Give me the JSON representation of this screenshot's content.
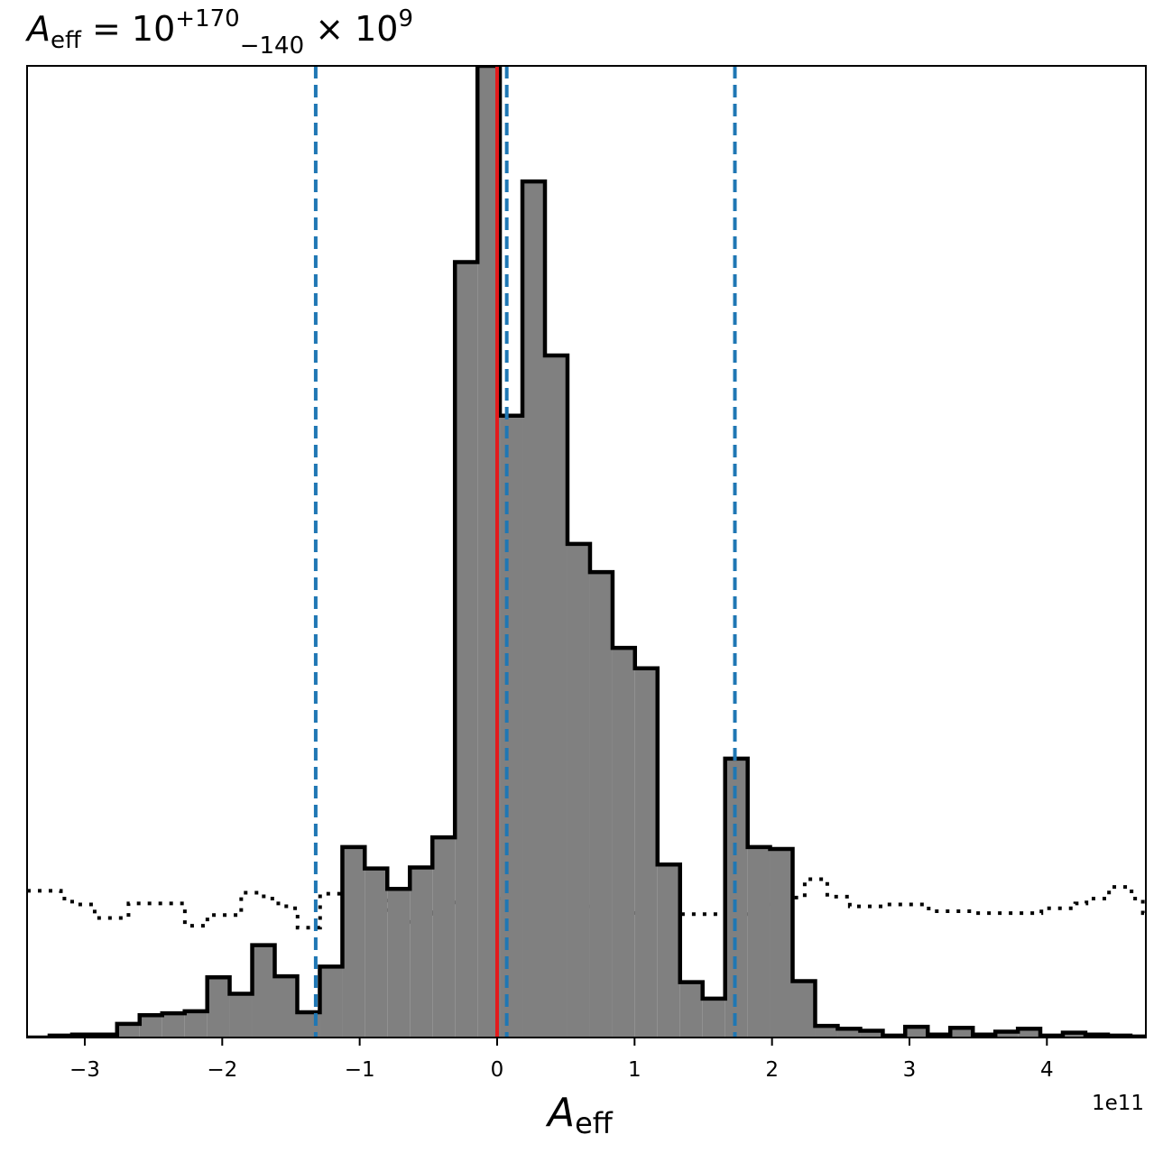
{
  "chart_data": {
    "type": "histogram",
    "title": {
      "symbol": "A",
      "subscript": "eff",
      "equals": " = 10",
      "sup": "+170",
      "sub": "−140",
      "times": " × 10",
      "exp": "9"
    },
    "xlabel": {
      "symbol": "A",
      "subscript": "eff"
    },
    "offset_text": "1e11",
    "ylabel": "",
    "xlim": [
      -3.42,
      4.72
    ],
    "ylim": [
      0,
      1.0
    ],
    "y_ticks_shown": false,
    "grid": false,
    "x_ticks": [
      {
        "value": -3,
        "label": "−3"
      },
      {
        "value": -2,
        "label": "−2"
      },
      {
        "value": -1,
        "label": "−1"
      },
      {
        "value": 0,
        "label": "0"
      },
      {
        "value": 1,
        "label": "1"
      },
      {
        "value": 2,
        "label": "2"
      },
      {
        "value": 3,
        "label": "3"
      },
      {
        "value": 4,
        "label": "4"
      }
    ],
    "bin_edges": [
      -3.42,
      -3.256,
      -3.092,
      -2.929,
      -2.765,
      -2.601,
      -2.437,
      -2.273,
      -2.109,
      -1.946,
      -1.782,
      -1.618,
      -1.454,
      -1.29,
      -1.126,
      -0.963,
      -0.799,
      -0.635,
      -0.471,
      -0.307,
      -0.143,
      0.02,
      0.184,
      0.348,
      0.512,
      0.676,
      0.84,
      1.003,
      1.167,
      1.331,
      1.495,
      1.659,
      1.823,
      1.986,
      2.15,
      2.314,
      2.478,
      2.642,
      2.806,
      2.969,
      3.133,
      3.297,
      3.461,
      3.625,
      3.789,
      3.952,
      4.116,
      4.28,
      4.444,
      4.608,
      4.772
    ],
    "counts": [
      0.0,
      0.002,
      0.003,
      0.003,
      0.014,
      0.023,
      0.025,
      0.027,
      0.062,
      0.045,
      0.095,
      0.063,
      0.026,
      0.073,
      0.196,
      0.174,
      0.153,
      0.175,
      0.206,
      0.798,
      1.0,
      0.64,
      0.881,
      0.702,
      0.508,
      0.479,
      0.401,
      0.38,
      0.178,
      0.057,
      0.04,
      0.287,
      0.196,
      0.194,
      0.058,
      0.012,
      0.009,
      0.007,
      0.002,
      0.011,
      0.003,
      0.01,
      0.003,
      0.006,
      0.009,
      0.002,
      0.005,
      0.003,
      0.002,
      0.001
    ],
    "hist_fill": "#808080",
    "hist_edge": "#000000",
    "prior_dotted": {
      "color": "#000000",
      "x_start": -3.42,
      "step": 0.082,
      "values": [
        0.151,
        0.151,
        0.151,
        0.143,
        0.137,
        0.137,
        0.123,
        0.123,
        0.123,
        0.138,
        0.138,
        0.138,
        0.138,
        0.138,
        0.115,
        0.115,
        0.126,
        0.126,
        0.126,
        0.149,
        0.149,
        0.143,
        0.138,
        0.133,
        0.113,
        0.113,
        0.148,
        0.148,
        0.148,
        0.148,
        0.146,
        0.141,
        0.126,
        0.119,
        0.119,
        0.119,
        0.129,
        0.139,
        0.145,
        0.145,
        0.145,
        0.143,
        0.141,
        0.126,
        0.126,
        0.126,
        0.138,
        0.138,
        0.138,
        0.135,
        0.135,
        0.135,
        0.133,
        0.133,
        0.124,
        0.124,
        0.124,
        0.127,
        0.127,
        0.127,
        0.127,
        0.127,
        0.127,
        0.127,
        0.127,
        0.137,
        0.137,
        0.144,
        0.144,
        0.163,
        0.163,
        0.145,
        0.145,
        0.135,
        0.135,
        0.135,
        0.137,
        0.137,
        0.137,
        0.137,
        0.13,
        0.13,
        0.13,
        0.13,
        0.128,
        0.128,
        0.128,
        0.128,
        0.128,
        0.128,
        0.133,
        0.133,
        0.133,
        0.138,
        0.143,
        0.143,
        0.155,
        0.155,
        0.143,
        0.128,
        0.128,
        0.128,
        0.128,
        0.128,
        0.128,
        0.12,
        0.12,
        0.12,
        0.138,
        0.138,
        0.138,
        0.145,
        0.145,
        0.145,
        0.145,
        0.145,
        0.145,
        0.145,
        0.148,
        0.148,
        0.148
      ]
    },
    "median_line": {
      "x": 0.0,
      "color": "#e41a1c"
    },
    "quantile_lines": {
      "x": [
        -1.32,
        0.07,
        1.73
      ],
      "color": "#1f77b4",
      "style": "dashed"
    }
  }
}
